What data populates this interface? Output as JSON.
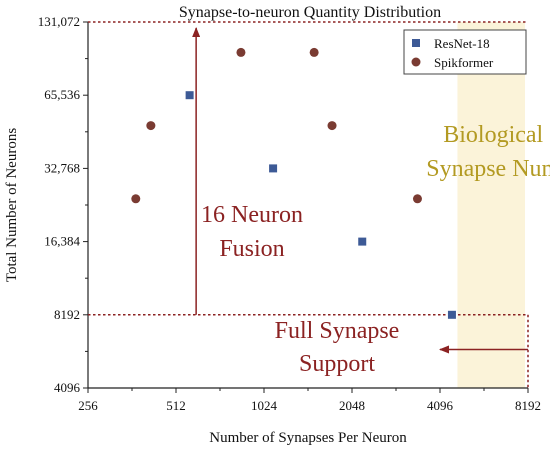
{
  "chart_data": {
    "type": "scatter",
    "title": "Synapse-to-neuron Quantity Distribution",
    "xlabel": "Number of Synapses Per Neuron",
    "ylabel": "Total Number of Neurons",
    "x_scale": "log2",
    "y_scale": "log2",
    "xlim": [
      256,
      8192
    ],
    "ylim": [
      4096,
      131072
    ],
    "x_ticks": [
      256,
      512,
      1024,
      2048,
      4096,
      8192
    ],
    "x_tick_labels": [
      "256",
      "512",
      "1024",
      "2048",
      "4096",
      "8192"
    ],
    "y_ticks": [
      4096,
      8192,
      16384,
      32768,
      65536,
      131072
    ],
    "y_tick_labels": [
      "4096",
      "8192",
      "16,384",
      "32,768",
      "65,536",
      "131,072"
    ],
    "grid": false,
    "legend_position": "top-right",
    "series": [
      {
        "name": "ResNet-18",
        "marker": "square",
        "color": "#3d5a96",
        "points": [
          {
            "x": 570,
            "y": 65536
          },
          {
            "x": 1100,
            "y": 32768
          },
          {
            "x": 2220,
            "y": 16384
          },
          {
            "x": 4500,
            "y": 8192
          }
        ]
      },
      {
        "name": "Spikformer",
        "marker": "circle",
        "color": "#7a3b32",
        "points": [
          {
            "x": 373,
            "y": 24576
          },
          {
            "x": 420,
            "y": 49152
          },
          {
            "x": 854,
            "y": 98304
          },
          {
            "x": 1520,
            "y": 98304
          },
          {
            "x": 1750,
            "y": 49152
          },
          {
            "x": 3430,
            "y": 24576
          }
        ]
      }
    ],
    "bands": [
      {
        "label_lines": [
          "Biological",
          "Synapse Num"
        ],
        "x_from": 4700,
        "x_to": 8000,
        "color": "#fbf3d9",
        "label_color": "#b39a22"
      }
    ],
    "annotations": [
      {
        "text_lines": [
          "16 Neuron",
          "Fusion"
        ],
        "color": "#8b2222"
      },
      {
        "text_lines": [
          "Full Synapse",
          "Support"
        ],
        "color": "#8b2222"
      }
    ],
    "guides": {
      "horizontal_top_y": 131072,
      "horizontal_bottom_y": 8192,
      "vertical_right_x": 8192,
      "vertical_arrow_x": 600,
      "horizontal_arrow_y": 5900,
      "horizontal_arrow_to_x": 4096,
      "color": "#8b2222"
    }
  }
}
